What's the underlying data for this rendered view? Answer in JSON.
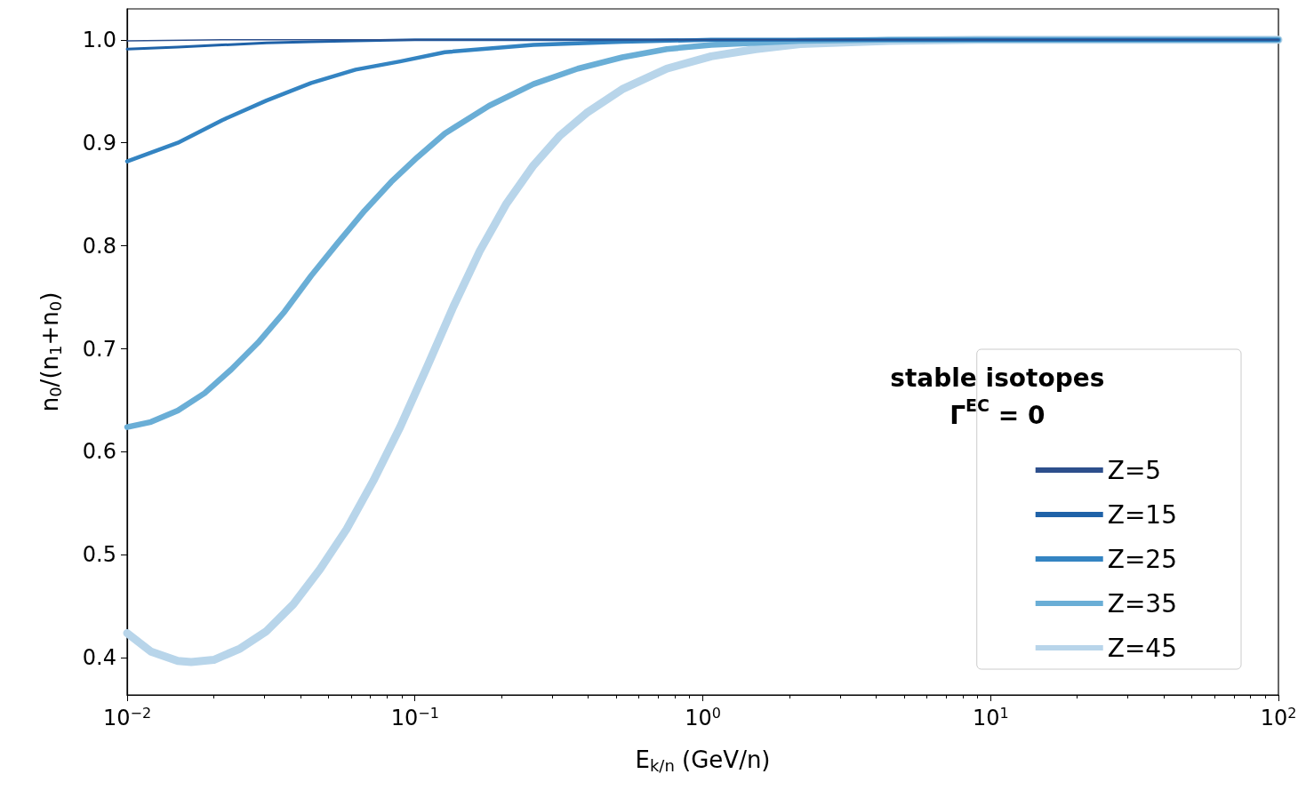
{
  "chart_data": {
    "type": "line",
    "xlabel": "E$_{k/n}$ (GeV/n)",
    "ylabel": "n$_{0}$/(n$_{1}$+n$_{0}$)",
    "legend_title": "stable isotopes\nΓ$^{EC}$ = 0",
    "legend": "bottom right",
    "grid": false,
    "log": "x",
    "marker": "none",
    "line_style": "solid",
    "xlim": [
      0.01,
      100
    ],
    "xticks": [
      {
        "value": 0.01,
        "label": "10$^{−2}$"
      },
      {
        "value": 0.1,
        "label": "10$^{−1}$"
      },
      {
        "value": 1,
        "label": "10$^{0}$"
      },
      {
        "value": 10,
        "label": "10$^{1}$"
      },
      {
        "value": 100,
        "label": "10$^{2}$"
      }
    ],
    "ylim": [
      0.364,
      1.03
    ],
    "yticks": [
      0.4,
      0.5,
      0.6,
      0.7,
      0.8,
      0.9,
      {
        "value": 1,
        "label": "1.0"
      }
    ],
    "series": [
      {
        "name": "Z=5",
        "color": "#2d4f8c",
        "x": [
          0.01,
          0.0214,
          0.0436,
          0.1,
          100
        ],
        "values": [
          0.999,
          1.0,
          1.0,
          1.0,
          1.0
        ]
      },
      {
        "name": "Z=15",
        "color": "#1f62a8",
        "x": [
          0.01,
          0.015,
          0.0214,
          0.0305,
          0.0436,
          0.0622,
          0.1,
          100
        ],
        "values": [
          0.991,
          0.993,
          0.995,
          0.997,
          0.998,
          0.999,
          1.0,
          1.0
        ]
      },
      {
        "name": "Z=25",
        "color": "#3484c2",
        "x": [
          0.01,
          0.015,
          0.0214,
          0.0305,
          0.0436,
          0.0622,
          0.0888,
          0.127,
          0.258,
          0.525,
          1.07,
          100
        ],
        "values": [
          0.882,
          0.9,
          0.922,
          0.941,
          0.958,
          0.971,
          0.979,
          0.988,
          0.995,
          0.998,
          1.0,
          1.0
        ]
      },
      {
        "name": "Z=35",
        "color": "#6aaed6",
        "x": [
          0.01,
          0.0121,
          0.015,
          0.0186,
          0.023,
          0.0285,
          0.0352,
          0.0436,
          0.054,
          0.0668,
          0.0827,
          0.102,
          0.127,
          0.181,
          0.258,
          0.368,
          0.525,
          0.75,
          1.07,
          2.18,
          4.44,
          100
        ],
        "values": [
          0.624,
          0.629,
          0.64,
          0.657,
          0.68,
          0.706,
          0.736,
          0.771,
          0.803,
          0.834,
          0.862,
          0.886,
          0.909,
          0.936,
          0.957,
          0.972,
          0.983,
          0.991,
          0.995,
          0.999,
          1.0,
          1.0
        ]
      },
      {
        "name": "Z=45",
        "color": "#b8d5ea",
        "x": [
          0.01,
          0.0121,
          0.015,
          0.0167,
          0.02,
          0.0247,
          0.0305,
          0.0378,
          0.0468,
          0.0579,
          0.0717,
          0.0888,
          0.11,
          0.136,
          0.168,
          0.208,
          0.258,
          0.319,
          0.395,
          0.525,
          0.75,
          1.07,
          1.53,
          2.18,
          4.44,
          9.0,
          100
        ],
        "values": [
          0.424,
          0.406,
          0.397,
          0.396,
          0.398,
          0.409,
          0.426,
          0.452,
          0.486,
          0.525,
          0.572,
          0.624,
          0.682,
          0.741,
          0.795,
          0.841,
          0.878,
          0.907,
          0.929,
          0.952,
          0.972,
          0.984,
          0.991,
          0.996,
          0.999,
          1.0,
          1.0
        ]
      }
    ]
  }
}
